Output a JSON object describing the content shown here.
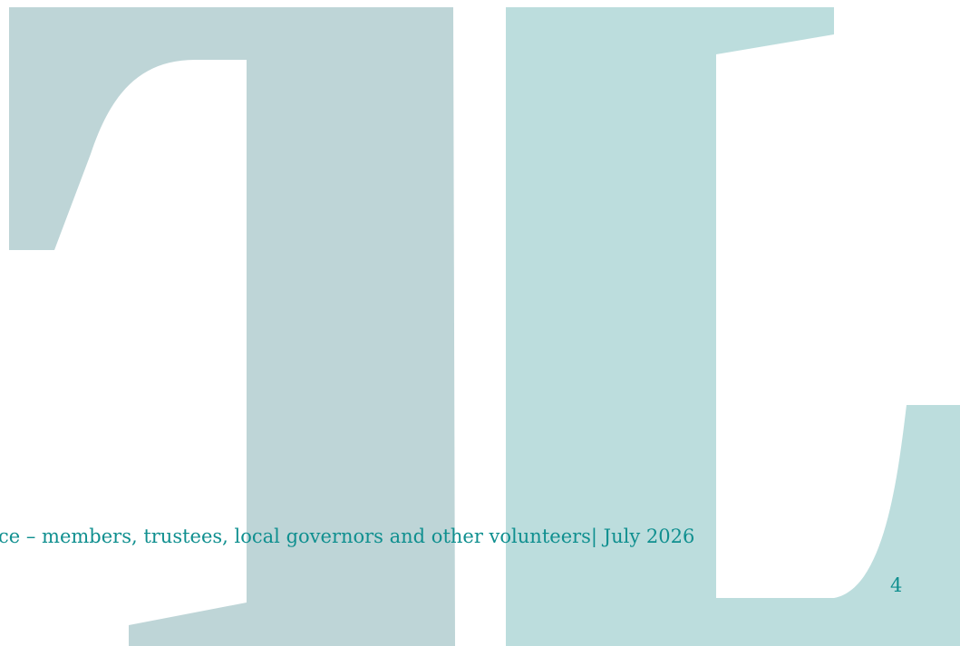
{
  "footer": {
    "text": "ce – members, trustees, local governors and other volunteers| July 2026",
    "page_number": "4"
  },
  "watermark": {
    "name": "TL monogram watermark",
    "colors": {
      "t_letter": "#bed5d7",
      "l_letter": "#bcdddd"
    }
  },
  "colors": {
    "footer_text": "#0f8f8f",
    "background": "#ffffff"
  }
}
